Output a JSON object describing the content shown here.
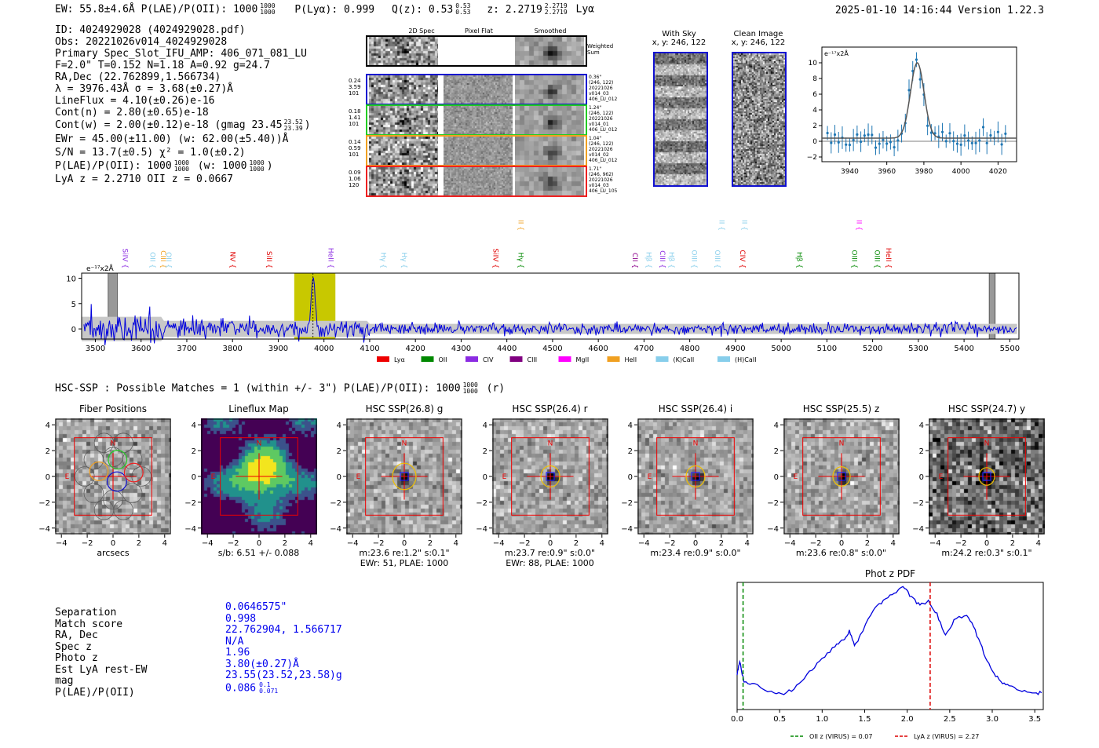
{
  "header": {
    "left": "EW: 55.8±4.6Å  P(LAE)/P(OII): 1000",
    "plae_sup": "1000",
    "plae_sub": "1000",
    "plya": "P(Lyα): 0.999",
    "qz": "Q(z): 0.53",
    "qz_sup": "0.53",
    "qz_sub": "0.53",
    "z": "z: 2.2719",
    "z_sup": "2.2719",
    "z_sub": "2.2719",
    "z_tag": "Lyα",
    "right": "2025-01-10 14:16:44  Version 1.22.3"
  },
  "info": {
    "lines": [
      "ID: 4024929028 (4024929028.pdf)",
      "Obs: 20221026v014_4024929028",
      "Primary Spec_Slot_IFU_AMP: 406_071_081_LU",
      "F=2.0\"  T=0.152  N=1.18  A=0.92  g=24.7",
      "RA,Dec (22.762899,1.566734)",
      "λ = 3976.43Å  σ = 3.68(±0.27)Å",
      "LineFlux = 4.10(±0.26)e-16",
      "Cont(n) = 2.80(±0.65)e-18"
    ],
    "contw": "Cont(w) = 2.00(±0.12)e-18 (gmag 23.45",
    "contw_sup": "23.52",
    "contw_sub": "23.39",
    "contw_end": ")",
    "lines2": [
      "EWr = 45.00(±11.00) (w: 62.00(±5.40))Å",
      "S/N = 13.7(±0.5)  χ² = 1.0(±0.2)"
    ],
    "plae_line": "P(LAE)/P(OII): 1000",
    "plae_line_sup": "1000",
    "plae_line_sub": "1000",
    "plae_line_mid": " (w: 1000",
    "plae_line_sup2": "1000",
    "plae_line_sub2": "1000",
    "plae_line_end": ")",
    "lya_z": "LyA z = 2.2710   OII z = 0.0667"
  },
  "cutouts": {
    "headers": [
      "2D Spec",
      "Pixel Flat",
      "Smoothed"
    ],
    "weighted_sum": "Weighted Sum",
    "rows": [
      {
        "left": [
          "0.24",
          "3.59",
          "101"
        ],
        "right": [
          "0.36\"",
          "(246, 122)",
          "20221026",
          "v014_03",
          "406_LU_012"
        ],
        "color": "#1010d0"
      },
      {
        "left": [
          "0.18",
          "1.41",
          "101"
        ],
        "right": [
          "1.24\"",
          "(246, 122)",
          "20221026",
          "v014_01",
          "406_LU_012"
        ],
        "color": "#22cc22"
      },
      {
        "left": [
          "0.14",
          "0.59",
          "101"
        ],
        "right": [
          "1.04\"",
          "(246, 122)",
          "20221026",
          "v014_02",
          "406_LU_012"
        ],
        "color": "#f0a020"
      },
      {
        "left": [
          "0.09",
          "1.06",
          "120"
        ],
        "right": [
          "1.71\"",
          "(246, 962)",
          "20221026",
          "v014_03",
          "406_LU_105"
        ],
        "color": "#ee2020"
      }
    ]
  },
  "sky": {
    "with_sky_title": "With Sky",
    "with_sky_xy": "x, y: 246, 122",
    "clean_title": "Clean Image",
    "clean_xy": "x, y: 246, 122"
  },
  "zoom_chart": {
    "type": "scatter",
    "ylabel": "e⁻¹⁷x2Å",
    "xlim": [
      3925,
      4030
    ],
    "ylim": [
      -2.6,
      12
    ],
    "xticks": [
      3940,
      3960,
      3980,
      4000,
      4020
    ],
    "yticks": [
      -2,
      0,
      2,
      4,
      6,
      8,
      10
    ],
    "fit_center": 3976.43,
    "fit_sigma": 3.68,
    "fit_amp": 9.6,
    "fit_base": 0.4
  },
  "spectrum": {
    "ylabel": "e⁻¹⁷x2Å",
    "xlim": [
      3470,
      5520
    ],
    "ylim": [
      -2,
      11
    ],
    "xticks": [
      3500,
      3600,
      3700,
      3800,
      3900,
      4000,
      4100,
      4200,
      4300,
      4400,
      4500,
      4600,
      4700,
      4800,
      4900,
      5000,
      5100,
      5200,
      5300,
      5400,
      5500
    ],
    "yticks": [
      0,
      5,
      10
    ],
    "line_center": 3976,
    "highlight": [
      3935,
      4025
    ],
    "masks": [
      [
        3528,
        3548
      ],
      [
        5455,
        5468
      ]
    ],
    "line_labels": [
      {
        "name": "SiIV",
        "x": 3555,
        "color": "#8b2be2",
        "row": 0
      },
      {
        "name": "OII",
        "x": 3615,
        "color": "#87ceeb",
        "row": 0
      },
      {
        "name": "CIII",
        "x": 3638,
        "color": "#f0a020",
        "row": 0
      },
      {
        "name": "OII",
        "x": 3650,
        "color": "#87ceeb",
        "row": 0
      },
      {
        "name": "NV",
        "x": 3790,
        "color": "#e00000",
        "row": 0
      },
      {
        "name": "SiII",
        "x": 3870,
        "color": "#e00000",
        "row": 0
      },
      {
        "name": "HeII",
        "x": 4005,
        "color": "#8b2be2",
        "row": 0
      },
      {
        "name": "Hγ",
        "x": 4120,
        "color": "#87ceeb",
        "row": 0
      },
      {
        "name": "Hγ",
        "x": 4165,
        "color": "#87ceeb",
        "row": 0
      },
      {
        "name": "SiIV",
        "x": 4365,
        "color": "#e00000",
        "row": 0
      },
      {
        "name": "Hγ",
        "x": 4420,
        "color": "#008800",
        "row": 0
      },
      {
        "name": "CIII",
        "x": 4420,
        "color": "#f0a020",
        "row": 1
      },
      {
        "name": "CII",
        "x": 4670,
        "color": "#8b008b",
        "row": 0
      },
      {
        "name": "Hβ",
        "x": 4700,
        "color": "#87ceeb",
        "row": 0
      },
      {
        "name": "CIII",
        "x": 4730,
        "color": "#8b2be2",
        "row": 0
      },
      {
        "name": "Hβ",
        "x": 4750,
        "color": "#87ceeb",
        "row": 0
      },
      {
        "name": "OIII",
        "x": 4800,
        "color": "#87ceeb",
        "row": 0
      },
      {
        "name": "OIII",
        "x": 4850,
        "color": "#87ceeb",
        "row": 0
      },
      {
        "name": "OIII",
        "x": 4860,
        "color": "#87ceeb",
        "row": 1
      },
      {
        "name": "CIV",
        "x": 4905,
        "color": "#e00000",
        "row": 0
      },
      {
        "name": "OIII",
        "x": 4910,
        "color": "#87ceeb",
        "row": 1
      },
      {
        "name": "Hβ",
        "x": 5030,
        "color": "#008800",
        "row": 0
      },
      {
        "name": "OIII",
        "x": 5150,
        "color": "#008800",
        "row": 0
      },
      {
        "name": "OII",
        "x": 5160,
        "color": "#ff00ff",
        "row": 1
      },
      {
        "name": "OIII",
        "x": 5200,
        "color": "#008800",
        "row": 0
      },
      {
        "name": "HeII",
        "x": 5225,
        "color": "#e00000",
        "row": 0
      }
    ],
    "legend": [
      {
        "name": "Lyα",
        "color": "#ee0000"
      },
      {
        "name": "OII",
        "color": "#008800"
      },
      {
        "name": "CIV",
        "color": "#8b2be2"
      },
      {
        "name": "CIII",
        "color": "#800080"
      },
      {
        "name": "MgII",
        "color": "#ff00ff"
      },
      {
        "name": "HeII",
        "color": "#f0a020"
      },
      {
        "name": "(K)CaII",
        "color": "#87ceeb"
      },
      {
        "name": "(H)CaII",
        "color": "#87ceeb"
      }
    ]
  },
  "hsc": {
    "title": "HSC-SSP : Possible Matches = 1 (within +/- 3\")  P(LAE)/P(OII): 1000",
    "title_sup": "1000",
    "title_sub": "1000",
    "title_end": " (r)",
    "panels": [
      {
        "title": "Fiber Positions",
        "cap1": "arcsecs",
        "cap2": "",
        "kind": "fiber",
        "noise": 0.55
      },
      {
        "title": "Lineflux Map",
        "cap1": "s/b: 6.51 +/- 0.088",
        "cap2": "",
        "kind": "flux",
        "noise": 0
      },
      {
        "title": "HSC SSP(26.8) g",
        "cap1": "m:23.6  re:1.2\"  s:0.1\"",
        "cap2": "EWr: 51, PLAE: 1000",
        "kind": "hsc",
        "noise": 0.5,
        "ellipse": 15
      },
      {
        "title": "HSC SSP(26.4) r",
        "cap1": "m:23.7  re:0.9\"  s:0.0\"",
        "cap2": "EWr: 88, PLAE: 1000",
        "kind": "hsc",
        "noise": 0.5,
        "ellipse": 12
      },
      {
        "title": "HSC SSP(26.4) i",
        "cap1": "m:23.4  re:0.9\"  s:0.0\"",
        "cap2": "",
        "kind": "hsc",
        "noise": 0.45,
        "ellipse": 12
      },
      {
        "title": "HSC SSP(25.5) z",
        "cap1": "m:23.6  re:0.8\"  s:0.0\"",
        "cap2": "",
        "kind": "hsc",
        "noise": 0.5,
        "ellipse": 11
      },
      {
        "title": "HSC SSP(24.7) y",
        "cap1": "m:24.2  re:0.3\"  s:0.1\"",
        "cap2": "",
        "kind": "hsc",
        "noise": 0.85,
        "ellipse": 10
      }
    ],
    "ticks": [
      -4,
      -2,
      0,
      2,
      4
    ],
    "north": "N",
    "east": "E"
  },
  "match": {
    "labels": [
      "Separation",
      "Match score",
      "RA, Dec",
      "Spec z",
      "Photo z",
      "Est LyA rest-EW",
      "mag",
      "P(LAE)/P(OII)"
    ],
    "values": [
      "0.0646575\"",
      "0.998",
      "22.762904, 1.566717",
      "N/A",
      "1.96",
      "3.80(±0.27)Å",
      "23.55(23.52,23.58)g",
      "0.086"
    ],
    "plae_sup": "0.1",
    "plae_sub": "0.071"
  },
  "photz": {
    "type": "line",
    "title": "Phot z PDF",
    "xlim": [
      0,
      3.6
    ],
    "xticks": [
      "0.0",
      "0.5",
      "1.0",
      "1.5",
      "2.0",
      "2.5",
      "3.0",
      "3.5"
    ],
    "oii_z": 0.07,
    "lya_z": 2.27,
    "legend_oii": "OII z (VIRUS) = 0.07",
    "legend_lya": "LyA z (VIRUS) = 2.27",
    "colors": {
      "oii": "#008800",
      "lya": "#dd0000",
      "curve": "#0000dd"
    }
  },
  "colors": {
    "blue": "#0000ee",
    "red": "#ee0000",
    "yellow_band": "#c8c800",
    "gray_band": "#c8c8c8"
  }
}
